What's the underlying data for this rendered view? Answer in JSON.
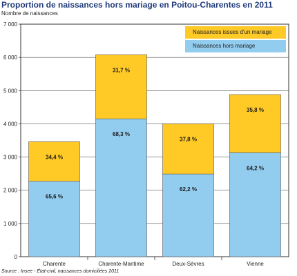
{
  "chart_data": {
    "type": "bar",
    "stacked": true,
    "title": "Proportion de naissances hors mariage en Poitou-Charentes en 2011",
    "ylabel": "Nombre de naissances",
    "source": "Source : Insee - État-civil, naissances domiciliées 2011",
    "categories": [
      "Charente",
      "Charente-Maritime",
      "Deux-Sèvres",
      "Vienne"
    ],
    "ylim": [
      0,
      7000
    ],
    "yticks": [
      0,
      1000,
      2000,
      3000,
      4000,
      5000,
      6000,
      7000
    ],
    "ytick_labels": [
      "0",
      "1 000",
      "2 000",
      "3 000",
      "4 000",
      "5 000",
      "6 000",
      "7 000"
    ],
    "grid": true,
    "legend_position": "top-right",
    "series": [
      {
        "name": "Naissances hors mariage",
        "color": "#92cdf0",
        "values": [
          2270,
          4150,
          2490,
          3130
        ],
        "labels": [
          "65,6 %",
          "68,3 %",
          "62,2 %",
          "64,2 %"
        ]
      },
      {
        "name": "Naissances issues d'un mariage",
        "color": "#ffc926",
        "values": [
          1190,
          1930,
          1510,
          1750
        ],
        "labels": [
          "34,4 %",
          "31,7 %",
          "37,8 %",
          "35,8 %"
        ]
      }
    ]
  }
}
